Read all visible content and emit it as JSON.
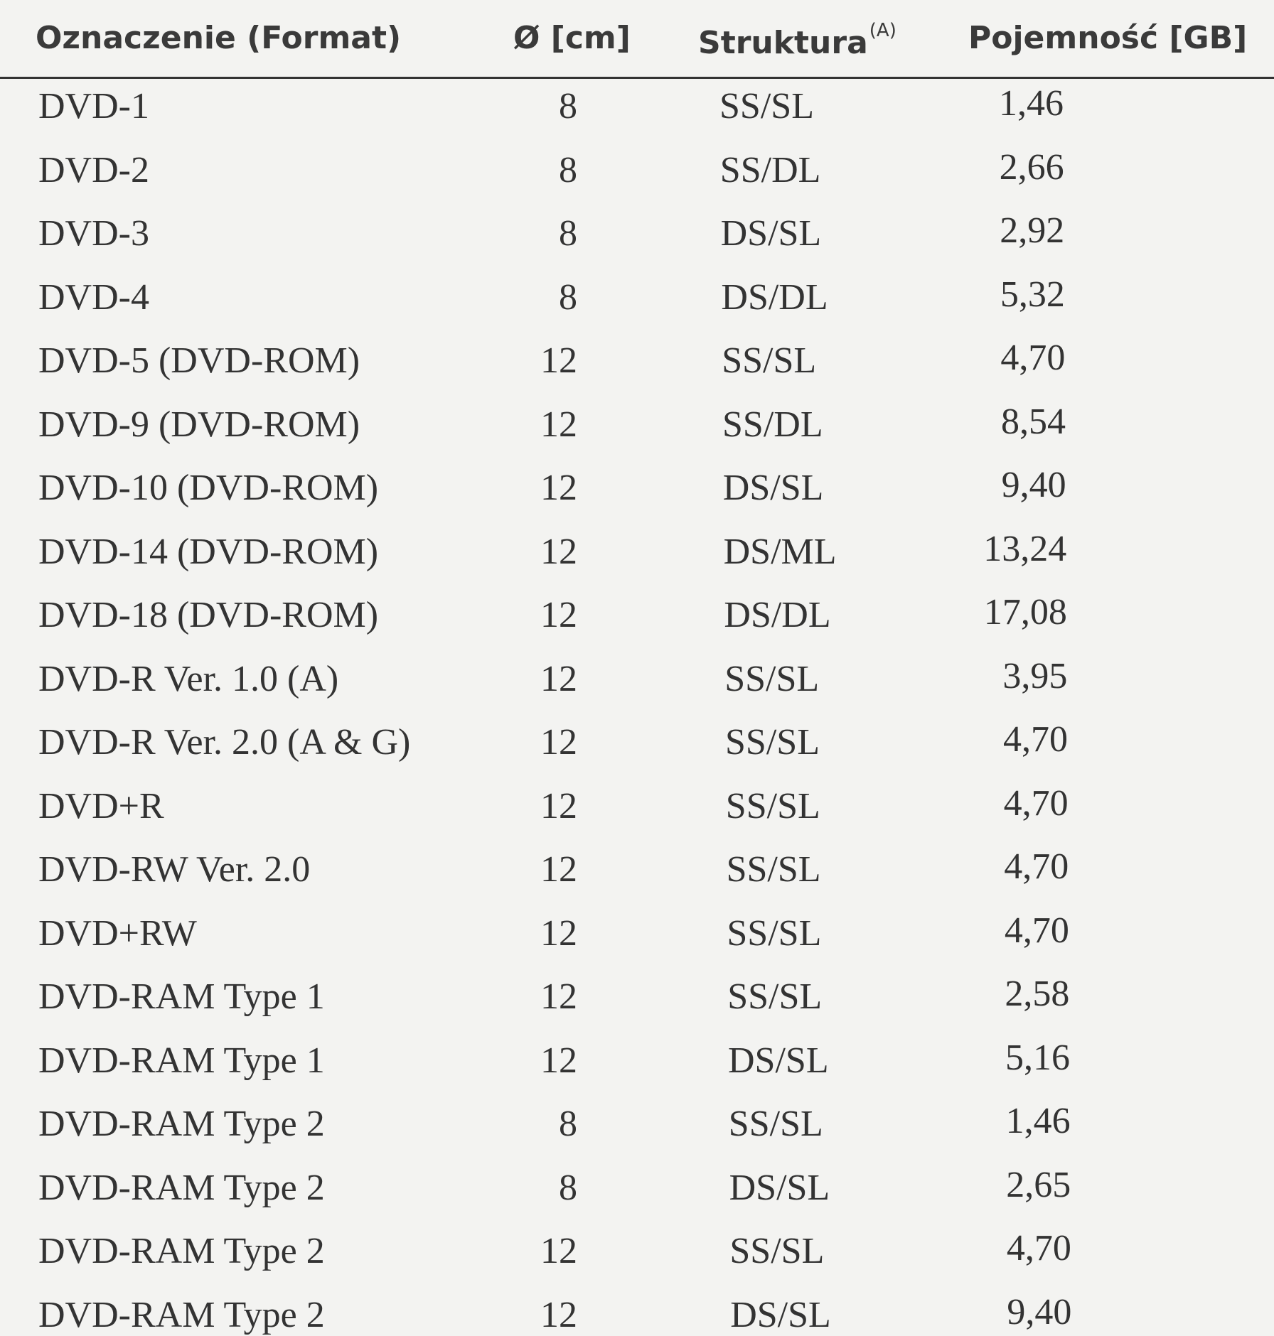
{
  "table": {
    "header": [
      "Oznaczenie (Format)",
      "Ø [cm]",
      "Struktura",
      "Pojemność [GB]"
    ],
    "header_superscript": "(A)",
    "rows": [
      [
        "DVD-1",
        "8",
        "SS/SL",
        "1,46"
      ],
      [
        "DVD-2",
        "8",
        "SS/DL",
        "2,66"
      ],
      [
        "DVD-3",
        "8",
        "DS/SL",
        "2,92"
      ],
      [
        "DVD-4",
        "8",
        "DS/DL",
        "5,32"
      ],
      [
        "DVD-5 (DVD-ROM)",
        "12",
        "SS/SL",
        "4,70"
      ],
      [
        "DVD-9 (DVD-ROM)",
        "12",
        "SS/DL",
        "8,54"
      ],
      [
        "DVD-10 (DVD-ROM)",
        "12",
        "DS/SL",
        "9,40"
      ],
      [
        "DVD-14 (DVD-ROM)",
        "12",
        "DS/ML",
        "13,24"
      ],
      [
        "DVD-18 (DVD-ROM)",
        "12",
        "DS/DL",
        "17,08"
      ],
      [
        "DVD-R Ver. 1.0 (A)",
        "12",
        "SS/SL",
        "3,95"
      ],
      [
        "DVD-R Ver. 2.0 (A & G)",
        "12",
        "SS/SL",
        "4,70"
      ],
      [
        "DVD+R",
        "12",
        "SS/SL",
        "4,70"
      ],
      [
        "DVD-RW Ver. 2.0",
        "12",
        "SS/SL",
        "4,70"
      ],
      [
        "DVD+RW",
        "12",
        "SS/SL",
        "4,70"
      ],
      [
        "DVD-RAM Type 1",
        "12",
        "SS/SL",
        "2,58"
      ],
      [
        "DVD-RAM Type 1",
        "12",
        "DS/SL",
        "5,16"
      ],
      [
        "DVD-RAM Type 2",
        "8",
        "SS/SL",
        "1,46"
      ],
      [
        "DVD-RAM Type 2",
        "8",
        "DS/SL",
        "2,65"
      ],
      [
        "DVD-RAM Type 2",
        "12",
        "SS/SL",
        "4,70"
      ],
      [
        "DVD-RAM Type 2",
        "12",
        "DS/SL",
        "9,40"
      ]
    ]
  }
}
